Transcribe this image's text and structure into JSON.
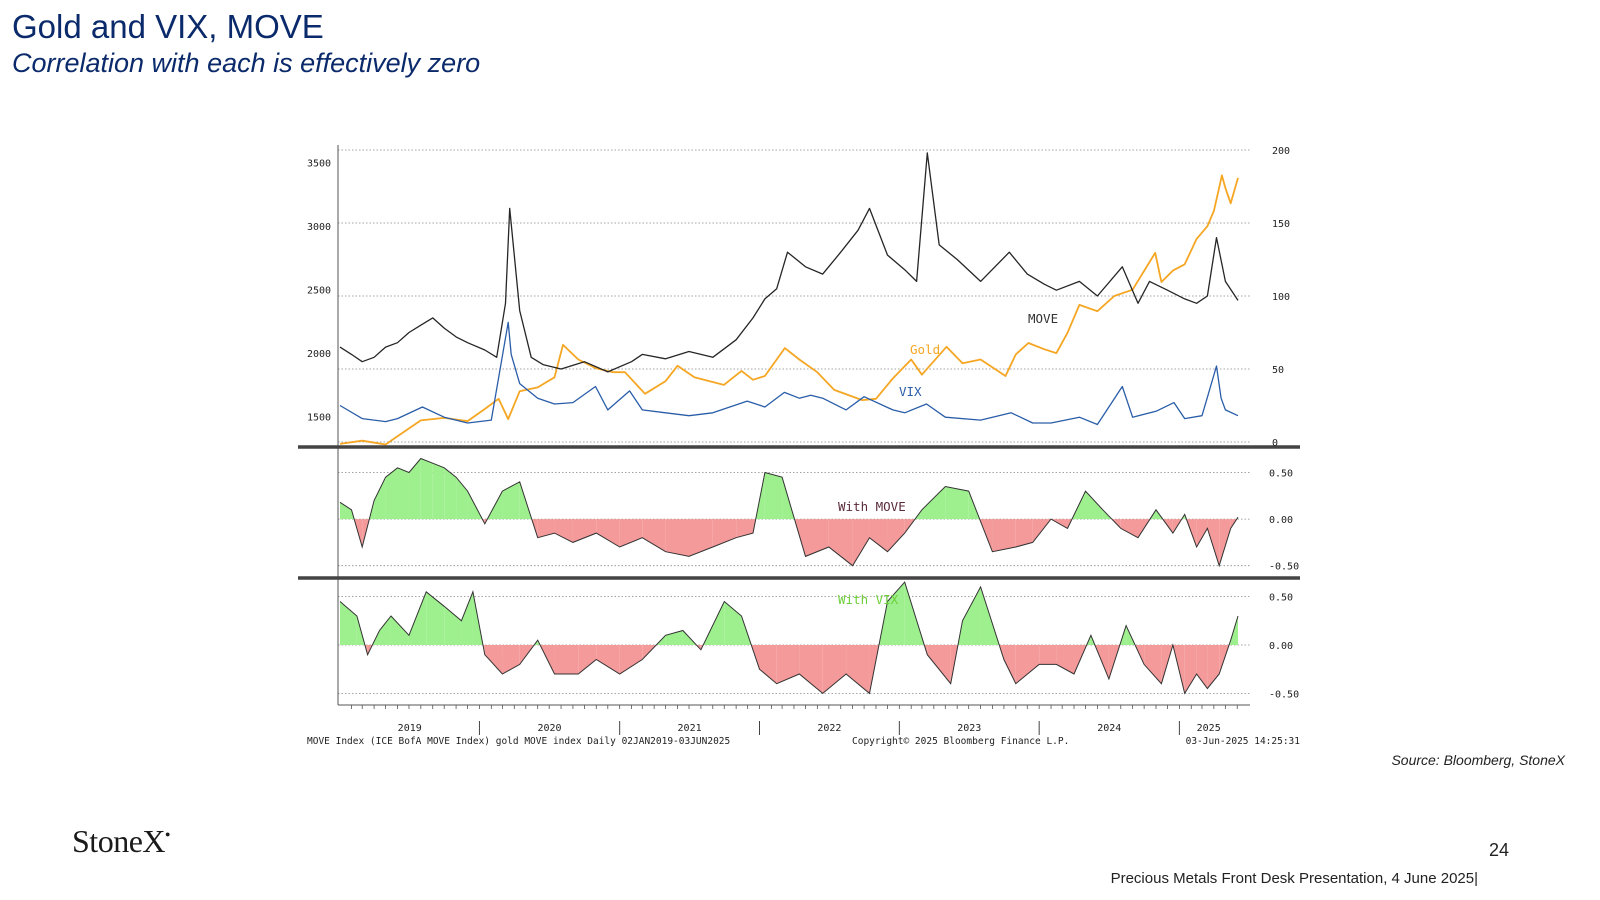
{
  "slide": {
    "title": "Gold and VIX, MOVE",
    "subtitle": "Correlation with each is effectively zero",
    "source": "Source: Bloomberg, StoneX",
    "logo": "StoneX",
    "page_number": "24",
    "footer": "Precious Metals Front Desk Presentation, 4 June 2025|"
  },
  "colors": {
    "gold": "#f5a623",
    "move": "#262626",
    "vix": "#2a5da8",
    "positive_fill": "#9ef08e",
    "negative_fill": "#f49a9a",
    "title": "#0b2a6b"
  },
  "chart_data": {
    "type": "line",
    "footer_left": "MOVE Index (ICE BofA MOVE Index) gold MOVE index  Daily 02JAN2019-03JUN2025",
    "footer_center": "Copyright© 2025 Bloomberg Finance L.P.",
    "footer_right": "03-Jun-2025 14:25:31",
    "x_tick_labels": [
      "2019",
      "2020",
      "2021",
      "2022",
      "2023",
      "2024",
      "2025"
    ],
    "x_range": [
      "2019-01-02",
      "2025-06-03"
    ],
    "panels": [
      {
        "name": "price",
        "left_axis": {
          "range": [
            1300,
            3600
          ],
          "ticks": [
            1500,
            2000,
            2500,
            3000,
            3500
          ]
        },
        "right_axis": {
          "range": [
            0,
            200
          ],
          "ticks": [
            0,
            50,
            100,
            150,
            200
          ]
        },
        "labels": {
          "move": "MOVE",
          "gold": "Gold",
          "vix": "VIX"
        },
        "series": [
          {
            "name": "Gold",
            "axis": "left",
            "x": [
              "2019-01-02",
              "2019-03-01",
              "2019-05-01",
              "2019-06-01",
              "2019-08-01",
              "2019-10-01",
              "2019-12-01",
              "2020-01-15",
              "2020-02-20",
              "2020-03-16",
              "2020-04-15",
              "2020-06-01",
              "2020-07-15",
              "2020-08-06",
              "2020-09-15",
              "2020-11-01",
              "2020-12-15",
              "2021-01-15",
              "2021-03-08",
              "2021-05-01",
              "2021-06-01",
              "2021-07-15",
              "2021-09-30",
              "2021-11-15",
              "2021-12-15",
              "2022-01-15",
              "2022-03-08",
              "2022-04-15",
              "2022-06-01",
              "2022-07-15",
              "2022-09-26",
              "2022-11-01",
              "2022-12-15",
              "2023-02-01",
              "2023-03-01",
              "2023-05-04",
              "2023-06-15",
              "2023-08-01",
              "2023-10-05",
              "2023-11-01",
              "2023-12-04",
              "2024-01-15",
              "2024-02-15",
              "2024-03-15",
              "2024-04-15",
              "2024-06-01",
              "2024-07-15",
              "2024-09-01",
              "2024-10-30",
              "2024-11-15",
              "2024-12-15",
              "2025-01-15",
              "2025-02-15",
              "2025-03-15",
              "2025-04-01",
              "2025-04-22",
              "2025-05-01",
              "2025-05-15",
              "2025-06-03"
            ],
            "values": [
              1285,
              1310,
              1280,
              1345,
              1470,
              1490,
              1465,
              1560,
              1640,
              1480,
              1700,
              1730,
              1810,
              2065,
              1950,
              1880,
              1850,
              1850,
              1680,
              1780,
              1900,
              1810,
              1750,
              1860,
              1790,
              1820,
              2040,
              1950,
              1850,
              1710,
              1630,
              1640,
              1800,
              1950,
              1830,
              2050,
              1920,
              1950,
              1820,
              1990,
              2080,
              2030,
              2000,
              2160,
              2380,
              2330,
              2450,
              2500,
              2790,
              2560,
              2650,
              2700,
              2900,
              3000,
              3120,
              3400,
              3300,
              3180,
              3380
            ]
          },
          {
            "name": "MOVE",
            "axis": "right",
            "x": [
              "2019-01-02",
              "2019-02-01",
              "2019-03-01",
              "2019-04-01",
              "2019-05-01",
              "2019-06-01",
              "2019-07-01",
              "2019-08-01",
              "2019-09-01",
              "2019-10-01",
              "2019-11-01",
              "2019-12-01",
              "2020-01-15",
              "2020-02-15",
              "2020-03-09",
              "2020-03-20",
              "2020-04-15",
              "2020-05-15",
              "2020-06-15",
              "2020-08-01",
              "2020-10-01",
              "2020-12-01",
              "2021-02-01",
              "2021-03-01",
              "2021-05-01",
              "2021-07-01",
              "2021-09-01",
              "2021-11-01",
              "2021-12-15",
              "2022-01-15",
              "2022-02-15",
              "2022-03-15",
              "2022-05-01",
              "2022-06-15",
              "2022-08-01",
              "2022-09-15",
              "2022-10-15",
              "2022-12-01",
              "2023-01-15",
              "2023-02-15",
              "2023-03-15",
              "2023-04-15",
              "2023-06-01",
              "2023-08-01",
              "2023-10-15",
              "2023-12-01",
              "2024-01-15",
              "2024-02-15",
              "2024-04-15",
              "2024-06-01",
              "2024-08-05",
              "2024-09-15",
              "2024-10-15",
              "2024-12-01",
              "2025-01-15",
              "2025-02-15",
              "2025-03-15",
              "2025-04-08",
              "2025-05-01",
              "2025-06-03"
            ],
            "values": [
              65,
              60,
              55,
              58,
              65,
              68,
              75,
              80,
              85,
              78,
              72,
              68,
              63,
              58,
              95,
              160,
              90,
              58,
              53,
              50,
              55,
              48,
              55,
              60,
              57,
              62,
              58,
              70,
              85,
              98,
              105,
              130,
              120,
              115,
              130,
              145,
              160,
              128,
              118,
              110,
              198,
              135,
              125,
              110,
              130,
              115,
              108,
              104,
              110,
              100,
              120,
              95,
              110,
              104,
              98,
              95,
              100,
              140,
              110,
              97
            ]
          },
          {
            "name": "VIX",
            "axis": "right",
            "x": [
              "2019-01-02",
              "2019-03-01",
              "2019-05-01",
              "2019-06-01",
              "2019-08-05",
              "2019-10-01",
              "2019-12-01",
              "2020-02-01",
              "2020-03-16",
              "2020-03-24",
              "2020-04-15",
              "2020-06-01",
              "2020-07-15",
              "2020-09-01",
              "2020-10-30",
              "2020-12-01",
              "2021-01-27",
              "2021-03-01",
              "2021-05-01",
              "2021-07-01",
              "2021-09-01",
              "2021-11-30",
              "2022-01-15",
              "2022-03-07",
              "2022-04-15",
              "2022-05-15",
              "2022-06-15",
              "2022-08-15",
              "2022-10-01",
              "2022-12-15",
              "2023-01-15",
              "2023-03-13",
              "2023-05-01",
              "2023-08-01",
              "2023-10-20",
              "2023-12-15",
              "2024-02-01",
              "2024-04-15",
              "2024-06-01",
              "2024-08-05",
              "2024-09-01",
              "2024-11-01",
              "2024-12-18",
              "2025-01-15",
              "2025-03-01",
              "2025-04-08",
              "2025-04-20",
              "2025-05-01",
              "2025-06-03"
            ],
            "values": [
              25,
              16,
              14,
              16,
              24,
              17,
              13,
              15,
              82,
              60,
              40,
              30,
              26,
              27,
              38,
              22,
              35,
              22,
              20,
              18,
              20,
              28,
              24,
              34,
              30,
              32,
              30,
              22,
              31,
              22,
              20,
              26,
              17,
              15,
              20,
              13,
              13,
              17,
              12,
              38,
              17,
              21,
              27,
              16,
              18,
              52,
              30,
              22,
              18
            ]
          }
        ]
      },
      {
        "name": "corr_move",
        "label": "With MOVE",
        "axis": {
          "range": [
            -0.6,
            0.72
          ],
          "ticks": [
            0.5,
            0.0,
            -0.5
          ]
        },
        "x": [
          "2019-01-02",
          "2019-02-01",
          "2019-03-01",
          "2019-04-01",
          "2019-05-01",
          "2019-06-01",
          "2019-07-01",
          "2019-08-01",
          "2019-09-01",
          "2019-10-01",
          "2019-11-01",
          "2019-12-01",
          "2020-01-15",
          "2020-03-01",
          "2020-04-15",
          "2020-06-01",
          "2020-07-15",
          "2020-09-01",
          "2020-11-01",
          "2021-01-01",
          "2021-03-01",
          "2021-05-01",
          "2021-07-01",
          "2021-09-01",
          "2021-11-01",
          "2021-12-15",
          "2022-01-15",
          "2022-03-01",
          "2022-05-01",
          "2022-07-01",
          "2022-09-01",
          "2022-10-15",
          "2022-12-01",
          "2023-01-15",
          "2023-03-01",
          "2023-05-01",
          "2023-07-01",
          "2023-09-01",
          "2023-11-01",
          "2023-12-15",
          "2024-02-01",
          "2024-03-15",
          "2024-05-01",
          "2024-06-15",
          "2024-08-01",
          "2024-09-15",
          "2024-11-01",
          "2024-12-15",
          "2025-01-15",
          "2025-02-15",
          "2025-03-15",
          "2025-04-15",
          "2025-05-15",
          "2025-06-03"
        ],
        "values": [
          0.18,
          0.1,
          -0.3,
          0.2,
          0.45,
          0.55,
          0.5,
          0.65,
          0.6,
          0.55,
          0.45,
          0.3,
          -0.05,
          0.3,
          0.4,
          -0.2,
          -0.15,
          -0.25,
          -0.15,
          -0.3,
          -0.2,
          -0.35,
          -0.4,
          -0.3,
          -0.2,
          -0.15,
          0.5,
          0.45,
          -0.4,
          -0.3,
          -0.5,
          -0.2,
          -0.35,
          -0.15,
          0.1,
          0.35,
          0.3,
          -0.35,
          -0.3,
          -0.25,
          0.0,
          -0.1,
          0.3,
          0.1,
          -0.1,
          -0.2,
          0.1,
          -0.15,
          0.05,
          -0.3,
          -0.1,
          -0.5,
          -0.1,
          0.02
        ]
      },
      {
        "name": "corr_vix",
        "label": "With VIX",
        "axis": {
          "range": [
            -0.62,
            0.62
          ],
          "ticks": [
            0.5,
            0.0,
            -0.5
          ]
        },
        "x": [
          "2019-01-02",
          "2019-02-15",
          "2019-03-15",
          "2019-04-15",
          "2019-05-15",
          "2019-07-01",
          "2019-08-15",
          "2019-10-01",
          "2019-11-15",
          "2019-12-15",
          "2020-01-15",
          "2020-03-01",
          "2020-04-15",
          "2020-06-01",
          "2020-07-15",
          "2020-09-15",
          "2020-11-01",
          "2021-01-01",
          "2021-03-01",
          "2021-05-01",
          "2021-06-15",
          "2021-08-01",
          "2021-10-01",
          "2021-11-15",
          "2022-01-01",
          "2022-02-15",
          "2022-04-15",
          "2022-06-15",
          "2022-08-15",
          "2022-10-15",
          "2022-12-01",
          "2023-01-15",
          "2023-03-15",
          "2023-05-15",
          "2023-06-15",
          "2023-08-01",
          "2023-10-01",
          "2023-11-01",
          "2024-01-01",
          "2024-02-15",
          "2024-04-01",
          "2024-05-15",
          "2024-07-01",
          "2024-08-15",
          "2024-10-01",
          "2024-11-15",
          "2024-12-15",
          "2025-01-15",
          "2025-02-15",
          "2025-03-15",
          "2025-04-15",
          "2025-05-15",
          "2025-06-03"
        ],
        "values": [
          0.45,
          0.3,
          -0.1,
          0.15,
          0.3,
          0.1,
          0.55,
          0.4,
          0.25,
          0.55,
          -0.1,
          -0.3,
          -0.2,
          0.05,
          -0.3,
          -0.3,
          -0.15,
          -0.3,
          -0.15,
          0.1,
          0.15,
          -0.05,
          0.45,
          0.3,
          -0.25,
          -0.4,
          -0.3,
          -0.5,
          -0.3,
          -0.5,
          0.45,
          0.65,
          -0.1,
          -0.4,
          0.25,
          0.6,
          -0.15,
          -0.4,
          -0.2,
          -0.2,
          -0.3,
          0.1,
          -0.35,
          0.2,
          -0.2,
          -0.4,
          0.0,
          -0.5,
          -0.3,
          -0.45,
          -0.3,
          0.05,
          0.3
        ]
      }
    ]
  }
}
